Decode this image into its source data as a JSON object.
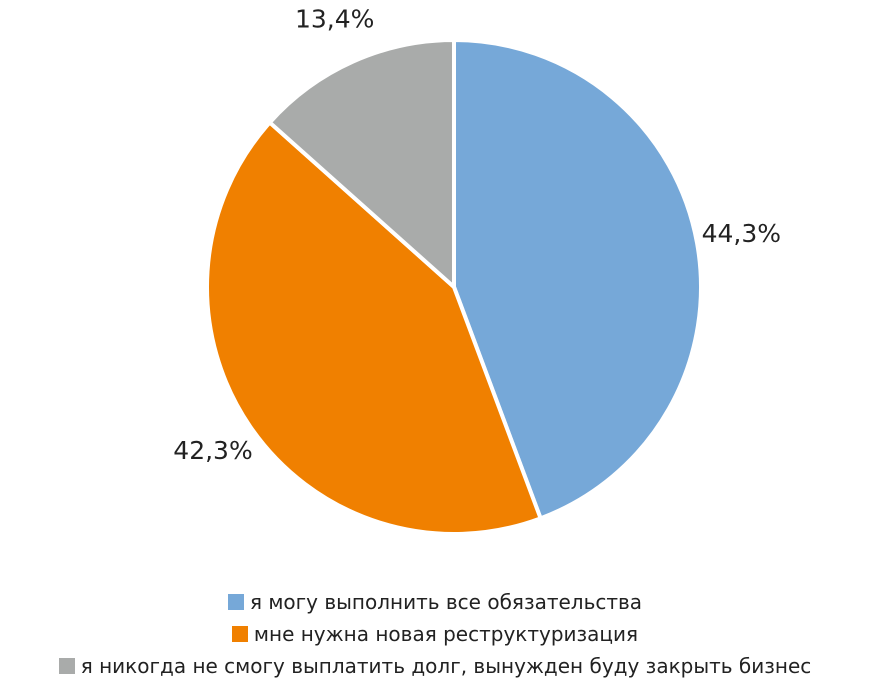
{
  "chart_data": {
    "type": "pie",
    "categories": [
      "я могу выполнить все обязательства",
      "мне нужна новая реструктуризация",
      "я никогда не смогу выплатить долг, вынужден буду закрыть бизнес"
    ],
    "values": [
      44.3,
      42.3,
      13.4
    ],
    "value_labels": [
      "44,3%",
      "42,3%",
      "13,4%"
    ],
    "colors": [
      "#76a8d8",
      "#f08000",
      "#a9abaa"
    ],
    "legend": "bottom"
  }
}
